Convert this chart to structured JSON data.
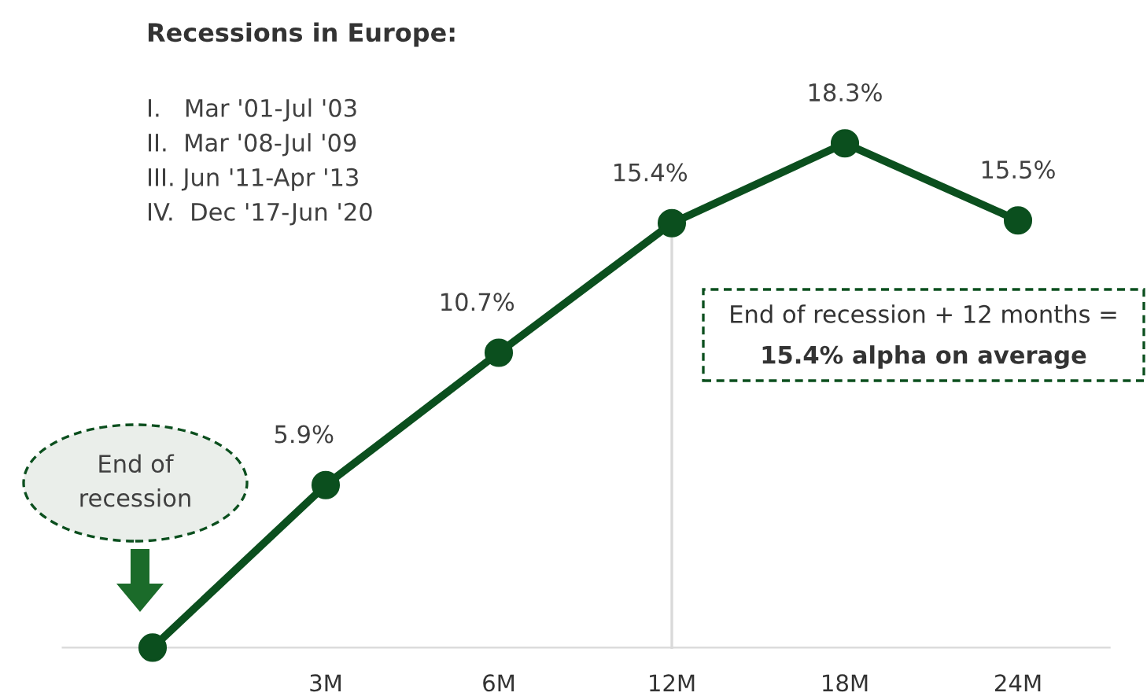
{
  "chart_data": {
    "type": "line",
    "title": "Recessions in Europe:",
    "categories": [
      null,
      "3M",
      "6M",
      "12M",
      "18M",
      "24M"
    ],
    "series": [
      {
        "color": "#0b4f1e",
        "values": [
          0,
          5.9,
          10.7,
          15.4,
          18.3,
          15.5
        ],
        "value_labels": [
          null,
          "5.9%",
          "10.7%",
          "15.4%",
          "18.3%",
          "15.5%"
        ]
      }
    ],
    "ylim": [
      -1.9,
      23.5
    ],
    "marker": "circle",
    "line_style": "solid",
    "grid": false,
    "legend": false,
    "ref_lines": [
      {
        "axis": "x",
        "value": "12M",
        "color": "#d9d9d9"
      }
    ],
    "annotations": [
      "I.   Mar '01-Jul '03",
      "II.  Mar '08-Jul '09",
      "III. Jun '11-Apr '13",
      "IV.  Dec '17-Jun '20",
      "End of recession + 12 months =",
      "15.4% alpha on average",
      "End of\nrecession"
    ]
  }
}
